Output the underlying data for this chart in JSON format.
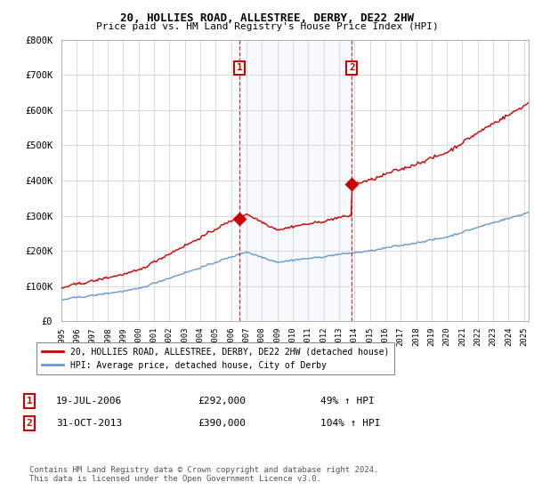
{
  "title": "20, HOLLIES ROAD, ALLESTREE, DERBY, DE22 2HW",
  "subtitle": "Price paid vs. HM Land Registry's House Price Index (HPI)",
  "ylim": [
    0,
    800000
  ],
  "xlim_start": 1995.0,
  "xlim_end": 2025.3,
  "sale1_date": 2006.54,
  "sale1_price": 292000,
  "sale2_date": 2013.83,
  "sale2_price": 390000,
  "red_color": "#cc0000",
  "blue_color": "#6699cc",
  "marker_box_color": "#cc0000",
  "shade_color": "#ddeeff",
  "legend_label_red": "20, HOLLIES ROAD, ALLESTREE, DERBY, DE22 2HW (detached house)",
  "legend_label_blue": "HPI: Average price, detached house, City of Derby",
  "table_row1": [
    "1",
    "19-JUL-2006",
    "£292,000",
    "49% ↑ HPI"
  ],
  "table_row2": [
    "2",
    "31-OCT-2013",
    "£390,000",
    "104% ↑ HPI"
  ],
  "footnote": "Contains HM Land Registry data © Crown copyright and database right 2024.\nThis data is licensed under the Open Government Licence v3.0.",
  "background_color": "#ffffff"
}
